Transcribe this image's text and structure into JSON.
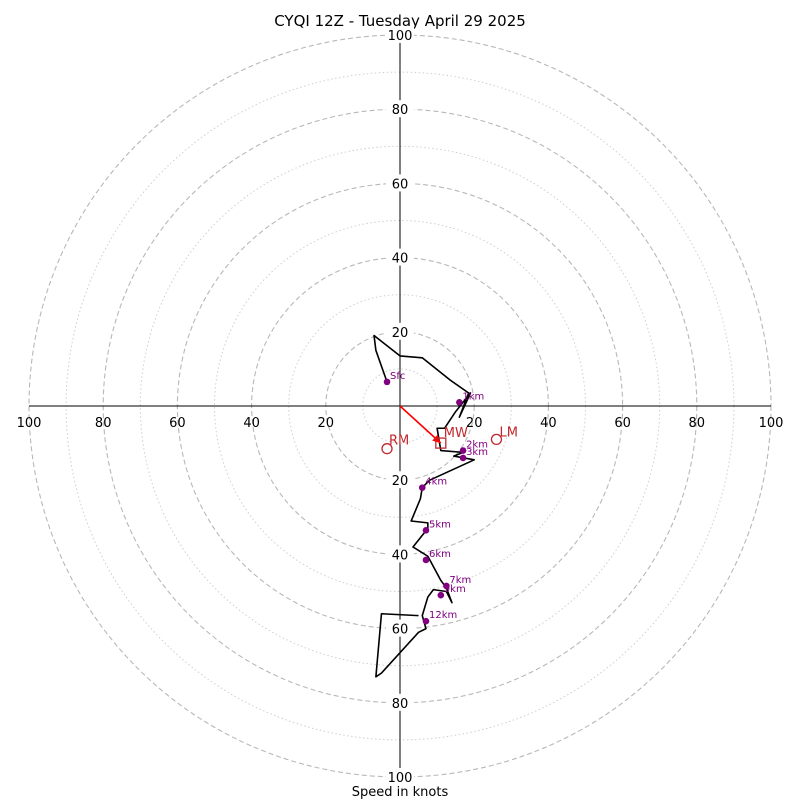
{
  "chart_data": {
    "type": "hodograph",
    "title": "CYQI 12Z - Tuesday April 29 2025",
    "xlabel": "Speed in knots",
    "axis_range": [
      -100,
      100
    ],
    "ring_speeds_major": [
      20,
      40,
      60,
      80,
      100
    ],
    "ring_speeds_minor": [
      10,
      30,
      50,
      70,
      90
    ],
    "tick_labels": {
      "x_left": [
        "100",
        "80",
        "60",
        "40",
        "20"
      ],
      "x_right": [
        "20",
        "40",
        "60",
        "80",
        "100"
      ],
      "y_up": [
        "20",
        "40",
        "60",
        "80",
        "100"
      ],
      "y_down": [
        "20",
        "40",
        "60",
        "80",
        "100"
      ]
    },
    "wind_trace": {
      "color": "#000000",
      "points": [
        [
          -3.5,
          6.5
        ],
        [
          -6.5,
          15
        ],
        [
          -7,
          19
        ],
        [
          0,
          13.5
        ],
        [
          6,
          13
        ],
        [
          13.5,
          7
        ],
        [
          18.5,
          3.5
        ],
        [
          16,
          -3
        ],
        [
          19,
          3.5
        ],
        [
          15,
          -1.5
        ],
        [
          12,
          -6
        ],
        [
          10,
          -6
        ],
        [
          11,
          -12
        ],
        [
          17,
          -12.5
        ],
        [
          14.5,
          -13.5
        ],
        [
          20,
          -14.5
        ],
        [
          8,
          -20
        ],
        [
          6,
          -22
        ],
        [
          5.5,
          -25
        ],
        [
          3,
          -31
        ],
        [
          7.5,
          -31.5
        ],
        [
          7.5,
          -33
        ],
        [
          3.5,
          -38
        ],
        [
          7.5,
          -40.5
        ],
        [
          11,
          -47
        ],
        [
          12.5,
          -49
        ],
        [
          14,
          -53
        ],
        [
          12.5,
          -50
        ],
        [
          9,
          -49.5
        ],
        [
          7.5,
          -51.5
        ],
        [
          6,
          -56.5
        ],
        [
          7,
          -60
        ],
        [
          5,
          -61
        ],
        [
          -5,
          -72
        ],
        [
          -6.5,
          -73
        ],
        [
          -5,
          -56
        ],
        [
          5,
          -56.5
        ]
      ]
    },
    "height_markers": [
      {
        "label": "Sfc",
        "u": -3.5,
        "v": 6.5
      },
      {
        "label": "1km",
        "u": 16,
        "v": 1
      },
      {
        "label": "2km",
        "u": 17,
        "v": -12
      },
      {
        "label": "3km",
        "u": 17,
        "v": -14
      },
      {
        "label": "4km",
        "u": 6,
        "v": -22
      },
      {
        "label": "5km",
        "u": 7,
        "v": -33.5
      },
      {
        "label": "6km",
        "u": 7,
        "v": -41.5
      },
      {
        "label": "7km",
        "u": 12.5,
        "v": -48.5
      },
      {
        "label": "9km",
        "u": 11,
        "v": -51
      },
      {
        "label": "12km",
        "u": 7,
        "v": -58
      }
    ],
    "storm_motion": {
      "color": "#c0282d",
      "mean_wind": {
        "label": "MW",
        "u": 11,
        "v": -10
      },
      "right_mover": {
        "label": "RM",
        "u": -3.5,
        "v": -11.5
      },
      "left_mover": {
        "label": "LM",
        "u": 26,
        "v": -9
      }
    },
    "colors": {
      "trace": "#000000",
      "markers": "#800080",
      "storm": "#c0282d",
      "shear_vector": "#ff0000",
      "grid": "#b8b8b8"
    }
  }
}
